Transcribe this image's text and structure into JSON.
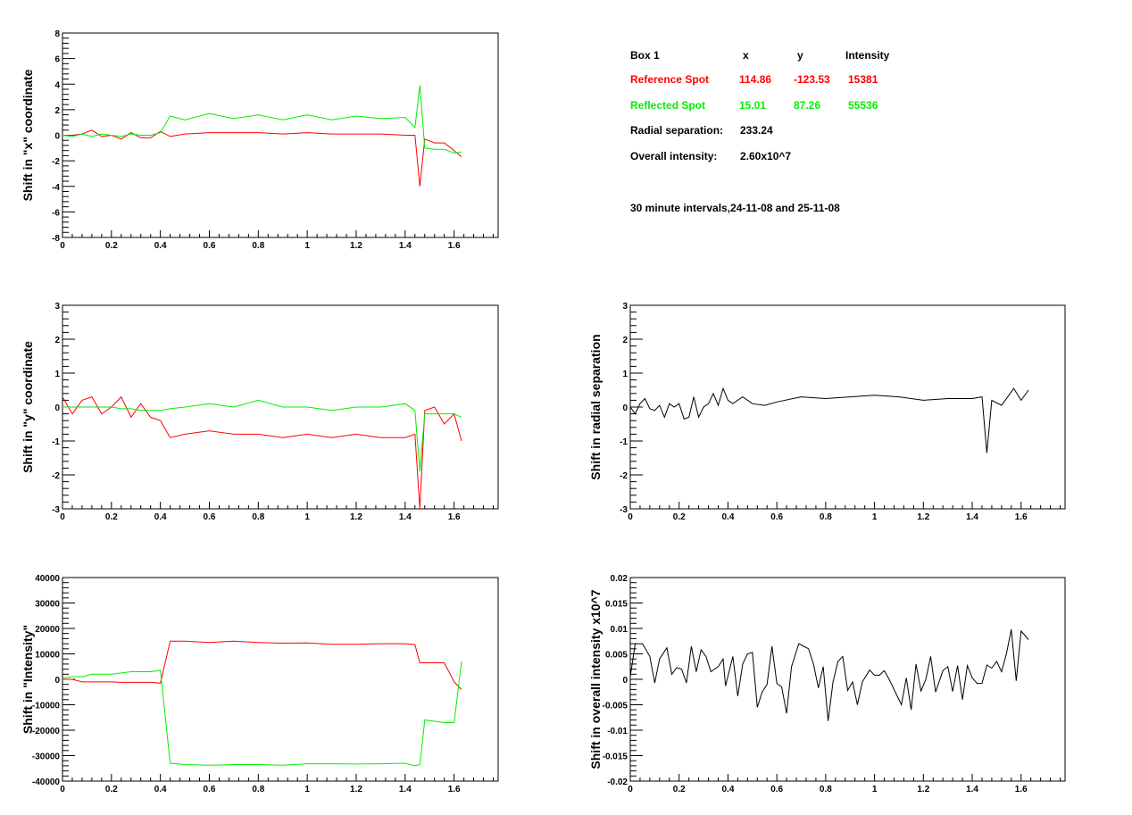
{
  "info_box": {
    "header": {
      "label": "Box 1",
      "x": "x",
      "y": "y",
      "intensity": "Intensity"
    },
    "reference": {
      "label": "Reference Spot",
      "x": "114.86",
      "y": "-123.53",
      "intensity": "15381",
      "color": "#ff0000"
    },
    "reflected": {
      "label": "Reflected Spot",
      "x": "15.01",
      "y": "87.26",
      "intensity": "55536",
      "color": "#00ee00"
    },
    "radial_label": "Radial separation:",
    "radial_value": "233.24",
    "overall_label": "Overall intensity:",
    "overall_value": "2.60x10^7",
    "note": "30 minute intervals,24-11-08 and 25-11-08"
  },
  "chart_data": [
    {
      "type": "line",
      "ylabel": "Shift in \"x\" coordinate",
      "xlim": [
        0,
        1.78
      ],
      "ylim": [
        -8,
        8
      ],
      "xticks": [
        0,
        0.2,
        0.4,
        0.6,
        0.8,
        1,
        1.2,
        1.4,
        1.6
      ],
      "xtick_labels": [
        "0",
        "0.2",
        "0.4",
        "0.6",
        "0.8",
        "1",
        "1.2",
        "1.4",
        "1.6"
      ],
      "yticks": [
        -8,
        -6,
        -4,
        -2,
        0,
        2,
        4,
        6,
        8
      ],
      "ytick_labels": [
        "-8",
        "-6",
        "-4",
        "-2",
        "0",
        "2",
        "4",
        "6",
        "8"
      ],
      "x": [
        0,
        0.04,
        0.08,
        0.12,
        0.16,
        0.2,
        0.24,
        0.28,
        0.32,
        0.36,
        0.4,
        0.44,
        0.5,
        0.6,
        0.7,
        0.8,
        0.9,
        1.0,
        1.1,
        1.2,
        1.3,
        1.4,
        1.44,
        1.46,
        1.48,
        1.52,
        1.56,
        1.6,
        1.63
      ],
      "series": [
        {
          "name": "Reference Spot",
          "color": "#ff0000",
          "values": [
            0,
            0,
            0.1,
            0.4,
            -0.1,
            0,
            -0.3,
            0.2,
            -0.2,
            -0.2,
            0.3,
            -0.1,
            0.1,
            0.2,
            0.2,
            0.2,
            0.1,
            0.2,
            0.1,
            0.1,
            0.1,
            0,
            0,
            -4,
            -0.3,
            -0.6,
            -0.6,
            -1.2,
            -1.7
          ]
        },
        {
          "name": "Reflected Spot",
          "color": "#00ee00",
          "values": [
            0,
            -0.1,
            0.1,
            -0.1,
            0.1,
            0,
            -0.1,
            0.1,
            0,
            0,
            0.2,
            1.5,
            1.2,
            1.7,
            1.3,
            1.6,
            1.2,
            1.6,
            1.2,
            1.5,
            1.3,
            1.4,
            0.6,
            3.9,
            -1.0,
            -1.1,
            -1.1,
            -1.4,
            -1.3
          ]
        }
      ]
    },
    {
      "type": "line",
      "ylabel": "Shift in \"y\" coordinate",
      "xlim": [
        0,
        1.78
      ],
      "ylim": [
        -3,
        3
      ],
      "xticks": [
        0,
        0.2,
        0.4,
        0.6,
        0.8,
        1,
        1.2,
        1.4,
        1.6
      ],
      "xtick_labels": [
        "0",
        "0.2",
        "0.4",
        "0.6",
        "0.8",
        "1",
        "1.2",
        "1.4",
        "1.6"
      ],
      "yticks": [
        -3,
        -2,
        -1,
        0,
        1,
        2,
        3
      ],
      "ytick_labels": [
        "-3",
        "-2",
        "-1",
        "0",
        "1",
        "2",
        "3"
      ],
      "x": [
        0,
        0.04,
        0.08,
        0.12,
        0.16,
        0.2,
        0.24,
        0.28,
        0.32,
        0.36,
        0.4,
        0.44,
        0.5,
        0.6,
        0.7,
        0.8,
        0.9,
        1.0,
        1.1,
        1.2,
        1.3,
        1.4,
        1.44,
        1.46,
        1.48,
        1.52,
        1.56,
        1.6,
        1.63
      ],
      "series": [
        {
          "name": "Reference Spot",
          "color": "#ff0000",
          "values": [
            0.3,
            -0.2,
            0.2,
            0.3,
            -0.2,
            0,
            0.3,
            -0.3,
            0.1,
            -0.3,
            -0.4,
            -0.9,
            -0.8,
            -0.7,
            -0.8,
            -0.8,
            -0.9,
            -0.8,
            -0.9,
            -0.8,
            -0.9,
            -0.9,
            -0.8,
            -3,
            -0.1,
            0,
            -0.5,
            -0.2,
            -1.0
          ]
        },
        {
          "name": "Reflected Spot",
          "color": "#00ee00",
          "values": [
            0,
            0,
            0,
            0,
            0,
            0,
            -0.05,
            -0.05,
            -0.1,
            -0.1,
            -0.1,
            -0.05,
            0,
            0.1,
            0,
            0.2,
            0,
            0,
            -0.1,
            0,
            0,
            0.1,
            -0.1,
            -1.9,
            -0.2,
            -0.2,
            -0.2,
            -0.2,
            -0.3
          ]
        }
      ]
    },
    {
      "type": "line",
      "ylabel": "Shift in \"Intensity\"",
      "xlim": [
        0,
        1.78
      ],
      "ylim": [
        -40000,
        40000
      ],
      "xticks": [
        0,
        0.2,
        0.4,
        0.6,
        0.8,
        1,
        1.2,
        1.4,
        1.6
      ],
      "xtick_labels": [
        "0",
        "0.2",
        "0.4",
        "0.6",
        "0.8",
        "1",
        "1.2",
        "1.4",
        "1.6"
      ],
      "yticks": [
        -40000,
        -30000,
        -20000,
        -10000,
        0,
        10000,
        20000,
        30000,
        40000
      ],
      "ytick_labels": [
        "-40000",
        "-30000",
        "-20000",
        "-10000",
        "0",
        "10000",
        "20000",
        "30000",
        "40000"
      ],
      "x": [
        0,
        0.04,
        0.08,
        0.12,
        0.16,
        0.2,
        0.24,
        0.28,
        0.32,
        0.36,
        0.4,
        0.44,
        0.5,
        0.6,
        0.7,
        0.8,
        0.9,
        1.0,
        1.1,
        1.2,
        1.3,
        1.4,
        1.44,
        1.46,
        1.48,
        1.52,
        1.56,
        1.6,
        1.63
      ],
      "series": [
        {
          "name": "Reference Spot",
          "color": "#ff0000",
          "values": [
            0,
            0,
            -1000,
            -1000,
            -1000,
            -1000,
            -1200,
            -1200,
            -1200,
            -1200,
            -1500,
            15000,
            15000,
            14500,
            15000,
            14500,
            14200,
            14300,
            13800,
            13800,
            14000,
            14000,
            13600,
            6500,
            6500,
            6500,
            6500,
            -1000,
            -4000
          ]
        },
        {
          "name": "Reflected Spot",
          "color": "#00ee00",
          "values": [
            500,
            1000,
            1000,
            2000,
            2000,
            2000,
            2500,
            3000,
            3000,
            3000,
            3500,
            -33000,
            -33500,
            -33800,
            -33500,
            -33500,
            -33800,
            -33200,
            -33200,
            -33300,
            -33200,
            -33000,
            -34000,
            -33500,
            -16000,
            -16500,
            -17000,
            -17000,
            7000
          ]
        }
      ]
    },
    {
      "type": "line",
      "ylabel": "Shift in radial separation",
      "xlim": [
        0,
        1.78
      ],
      "ylim": [
        -3,
        3
      ],
      "xticks": [
        0,
        0.2,
        0.4,
        0.6,
        0.8,
        1,
        1.2,
        1.4,
        1.6
      ],
      "xtick_labels": [
        "0",
        "0.2",
        "0.4",
        "0.6",
        "0.8",
        "1",
        "1.2",
        "1.4",
        "1.6"
      ],
      "yticks": [
        -3,
        -2,
        -1,
        0,
        1,
        2,
        3
      ],
      "ytick_labels": [
        "-3",
        "-2",
        "-1",
        "0",
        "1",
        "2",
        "3"
      ],
      "x": [
        0,
        0.02,
        0.04,
        0.06,
        0.08,
        0.1,
        0.12,
        0.14,
        0.16,
        0.18,
        0.2,
        0.22,
        0.24,
        0.26,
        0.28,
        0.3,
        0.32,
        0.34,
        0.36,
        0.38,
        0.4,
        0.42,
        0.46,
        0.5,
        0.55,
        0.6,
        0.7,
        0.8,
        0.9,
        1.0,
        1.1,
        1.2,
        1.3,
        1.4,
        1.44,
        1.46,
        1.48,
        1.52,
        1.57,
        1.6,
        1.63
      ],
      "series": [
        {
          "name": "Radial separation",
          "color": "#000000",
          "values": [
            0,
            -0.2,
            0.1,
            0.25,
            -0.05,
            -0.1,
            0.05,
            -0.3,
            0.1,
            0,
            0.1,
            -0.35,
            -0.3,
            0.3,
            -0.3,
            0,
            0.1,
            0.4,
            0.05,
            0.55,
            0.2,
            0.1,
            0.3,
            0.1,
            0.05,
            0.15,
            0.3,
            0.25,
            0.3,
            0.35,
            0.3,
            0.2,
            0.25,
            0.25,
            0.3,
            -1.35,
            0.2,
            0.05,
            0.55,
            0.2,
            0.5
          ]
        }
      ]
    },
    {
      "type": "line",
      "ylabel": "Shift in overall intensity x10^7",
      "xlim": [
        0,
        1.78
      ],
      "ylim": [
        -0.02,
        0.02
      ],
      "xticks": [
        0,
        0.2,
        0.4,
        0.6,
        0.8,
        1,
        1.2,
        1.4,
        1.6
      ],
      "xtick_labels": [
        "0",
        "0.2",
        "0.4",
        "0.6",
        "0.8",
        "1",
        "1.2",
        "1.4",
        "1.6"
      ],
      "yticks": [
        -0.02,
        -0.015,
        -0.01,
        -0.005,
        0,
        0.005,
        0.01,
        0.015,
        0.02
      ],
      "ytick_labels": [
        "-0.02",
        "-0.015",
        "-0.01",
        "-0.005",
        "0",
        "0.005",
        "0.01",
        "0.015",
        "0.02"
      ],
      "x": [
        0,
        0.02,
        0.05,
        0.08,
        0.1,
        0.12,
        0.15,
        0.17,
        0.19,
        0.21,
        0.23,
        0.25,
        0.27,
        0.29,
        0.31,
        0.33,
        0.36,
        0.38,
        0.39,
        0.42,
        0.44,
        0.46,
        0.48,
        0.5,
        0.52,
        0.54,
        0.56,
        0.58,
        0.6,
        0.62,
        0.64,
        0.66,
        0.69,
        0.71,
        0.73,
        0.75,
        0.77,
        0.79,
        0.81,
        0.83,
        0.85,
        0.87,
        0.89,
        0.91,
        0.93,
        0.95,
        0.98,
        1.0,
        1.02,
        1.04,
        1.06,
        1.11,
        1.13,
        1.15,
        1.17,
        1.19,
        1.21,
        1.23,
        1.25,
        1.28,
        1.3,
        1.32,
        1.34,
        1.36,
        1.38,
        1.4,
        1.42,
        1.44,
        1.46,
        1.48,
        1.5,
        1.52,
        1.54,
        1.56,
        1.58,
        1.6,
        1.63
      ],
      "series": [
        {
          "name": "Overall intensity",
          "color": "#000000",
          "values": [
            0.0005,
            0.007,
            0.007,
            0.0045,
            -0.0007,
            0.004,
            0.0062,
            0.001,
            0.0023,
            0.002,
            -0.0007,
            0.0065,
            0.0015,
            0.0058,
            0.0045,
            0.0015,
            0.0025,
            0.004,
            -0.0013,
            0.0045,
            -0.0033,
            0.003,
            0.005,
            0.0053,
            -0.0055,
            -0.0025,
            -0.001,
            0.0065,
            -0.0008,
            -0.0015,
            -0.0067,
            0.0025,
            0.007,
            0.0065,
            0.006,
            0.003,
            -0.0017,
            0.0025,
            -0.0082,
            -0.0005,
            0.0035,
            0.0045,
            -0.0022,
            -0.0005,
            -0.005,
            -0.0005,
            0.0018,
            0.0008,
            0.0008,
            0.0017,
            0,
            -0.005,
            0.0003,
            -0.006,
            0.003,
            -0.0023,
            0,
            0.0045,
            -0.0025,
            0.0017,
            0.0025,
            -0.0024,
            0.0027,
            -0.004,
            0.0027,
            0.0003,
            -0.0008,
            -0.0008,
            0.0028,
            0.0022,
            0.0035,
            0.0015,
            0.005,
            0.0098,
            -0.0003,
            0.0095,
            0.0078
          ]
        }
      ]
    }
  ]
}
